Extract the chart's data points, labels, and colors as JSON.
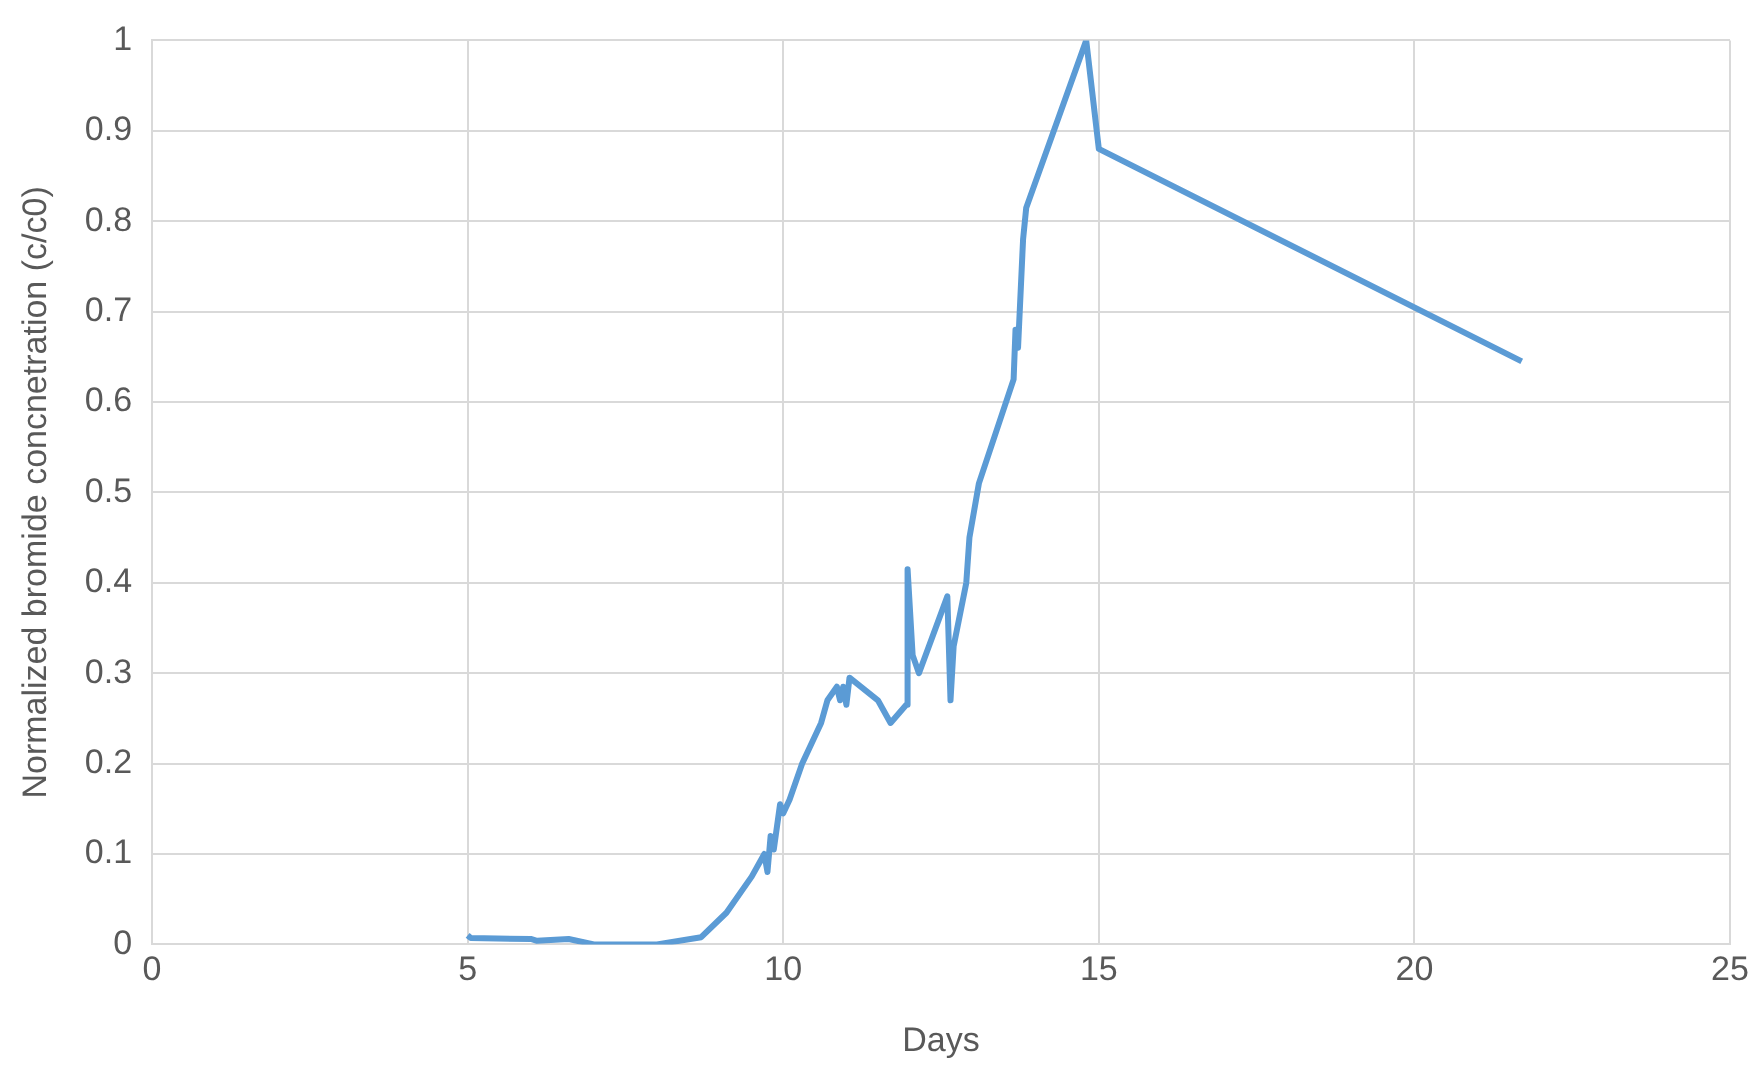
{
  "chart_data": {
    "type": "line",
    "xlabel": "Days",
    "ylabel": "Normalized bromide concnetration (c/c0)",
    "xlim": [
      0,
      25
    ],
    "xticks": [
      0,
      5,
      10,
      15,
      20,
      25
    ],
    "ylim": [
      0,
      1
    ],
    "yticks": [
      0,
      0.1,
      0.2,
      0.3,
      0.4,
      0.5,
      0.6,
      0.7,
      0.8,
      0.9,
      1
    ],
    "grid": true,
    "legend": false,
    "marker": "none",
    "line_style": "solid",
    "series": [
      {
        "color": "#5b9bd5",
        "x": [
          5.0,
          5.05,
          6.0,
          6.1,
          6.6,
          7.0,
          8.0,
          8.7,
          9.1,
          9.5,
          9.7,
          9.75,
          9.8,
          9.85,
          9.95,
          10.0,
          10.1,
          10.3,
          10.6,
          10.7,
          10.85,
          10.9,
          10.95,
          11.0,
          11.05,
          11.5,
          11.7,
          11.95,
          11.97,
          12.05,
          12.15,
          12.6,
          12.65,
          12.7,
          12.9,
          12.95,
          13.1,
          13.65,
          13.68,
          13.72,
          13.8,
          13.85,
          14.8,
          15.0,
          21.7
        ],
        "values": [
          0.01,
          0.007,
          0.006,
          0.004,
          0.006,
          0.0,
          0.0,
          0.008,
          0.035,
          0.075,
          0.1,
          0.08,
          0.12,
          0.105,
          0.155,
          0.145,
          0.16,
          0.2,
          0.245,
          0.27,
          0.285,
          0.27,
          0.285,
          0.265,
          0.295,
          0.27,
          0.245,
          0.265,
          0.415,
          0.32,
          0.3,
          0.385,
          0.27,
          0.33,
          0.4,
          0.45,
          0.51,
          0.625,
          0.68,
          0.66,
          0.78,
          0.815,
          1.0,
          0.88,
          0.645
        ]
      }
    ]
  }
}
